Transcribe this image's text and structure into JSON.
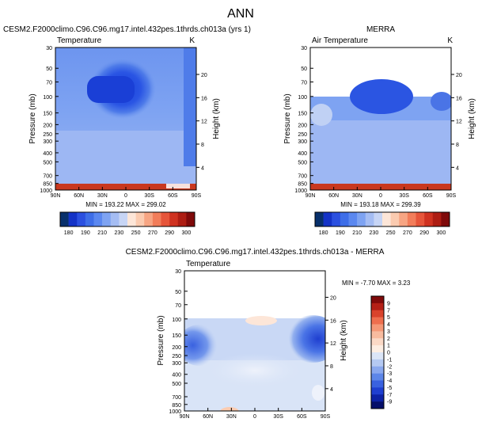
{
  "figure": {
    "title": "ANN"
  },
  "chart_data": [
    {
      "type": "heatmap",
      "title": "CESM2.F2000climo.C96.C96.mg17.intel.432pes.1thrds.ch013a (yrs 1)",
      "left_label": "Temperature",
      "units": "K",
      "ylabel": "Pressure (mb)",
      "y2label": "Height (km)",
      "x_ticks": [
        "90N",
        "60N",
        "30N",
        "0",
        "30S",
        "60S",
        "90S"
      ],
      "y_ticks": [
        "30",
        "50",
        "70",
        "100",
        "150",
        "200",
        "250",
        "300",
        "400",
        "500",
        "700",
        "850",
        "1000"
      ],
      "y2_ticks": [
        "20",
        "16",
        "12",
        "8",
        "4"
      ],
      "ylim": [
        1000,
        30
      ],
      "xlim": [
        90,
        -90
      ],
      "top_pressure": 30,
      "stats": "MIN = 193.22   MAX = 299.02",
      "min": 193.22,
      "max": 299.02
    },
    {
      "type": "heatmap",
      "title": "MERRA",
      "left_label": "Air Temperature",
      "units": "K",
      "ylabel": "Pressure (mb)",
      "y2label": "Height (km)",
      "x_ticks": [
        "90N",
        "60N",
        "30N",
        "0",
        "30S",
        "60S",
        "90S"
      ],
      "y_ticks": [
        "30",
        "50",
        "70",
        "100",
        "150",
        "200",
        "250",
        "300",
        "400",
        "500",
        "700",
        "850",
        "1000"
      ],
      "y2_ticks": [
        "20",
        "16",
        "12",
        "8",
        "4"
      ],
      "ylim": [
        1000,
        30
      ],
      "xlim": [
        90,
        -90
      ],
      "top_pressure": 100,
      "stats": "MIN = 193.18   MAX = 299.39",
      "min": 193.18,
      "max": 299.39
    },
    {
      "type": "heatmap",
      "title": "CESM2.F2000climo.C96.C96.mg17.intel.432pes.1thrds.ch013a - MERRA",
      "left_label": "Temperature",
      "units": "",
      "ylabel": "Pressure (mb)",
      "y2label": "Height (km)",
      "x_ticks": [
        "90N",
        "60N",
        "30N",
        "0",
        "30S",
        "60S",
        "90S"
      ],
      "y_ticks": [
        "30",
        "50",
        "70",
        "100",
        "150",
        "200",
        "250",
        "300",
        "400",
        "500",
        "700",
        "850",
        "1000"
      ],
      "y2_ticks": [
        "20",
        "16",
        "12",
        "8",
        "4"
      ],
      "ylim": [
        1000,
        30
      ],
      "xlim": [
        90,
        -90
      ],
      "top_pressure": 100,
      "stats": "MIN = -7.70   MAX =   3.23",
      "min": -7.7,
      "max": 3.23
    }
  ],
  "colorbar_top": {
    "labels": [
      "180",
      "190",
      "210",
      "230",
      "250",
      "270",
      "290",
      "300"
    ],
    "colors": [
      "#08306b",
      "#1433c7",
      "#2b50e0",
      "#3e6ee8",
      "#5b88f0",
      "#7ea3f2",
      "#a5bdf3",
      "#c7d5f5",
      "#fde6d8",
      "#fbcbb0",
      "#f7a583",
      "#f27d5a",
      "#e6553a",
      "#cf3220",
      "#ad1d13",
      "#7f0a0a"
    ]
  },
  "colorbar_diff": {
    "labels": [
      "9",
      "7",
      "5",
      "4",
      "3",
      "2",
      "1",
      "0",
      "-1",
      "-2",
      "-3",
      "-4",
      "-5",
      "-7",
      "-9"
    ],
    "colors": [
      "#7f0a0a",
      "#b41f16",
      "#d9432c",
      "#ee6e4e",
      "#f59877",
      "#f8bb9f",
      "#fbd9c6",
      "#fdeee3",
      "#dbe5f7",
      "#b5c9f2",
      "#8aa8ee",
      "#5d86e8",
      "#3a62e0",
      "#1f3fd0",
      "#0d22a5",
      "#060f6a"
    ]
  }
}
